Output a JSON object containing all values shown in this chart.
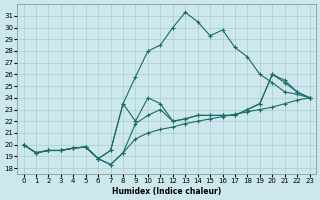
{
  "xlabel": "Humidex (Indice chaleur)",
  "bg_color": "#cce8ec",
  "grid_color": "#aacccc",
  "line_color": "#1a6b6b",
  "xlim": [
    -0.5,
    23.5
  ],
  "ylim": [
    17.5,
    32.0
  ],
  "xticks": [
    0,
    1,
    2,
    3,
    4,
    5,
    6,
    7,
    8,
    9,
    10,
    11,
    12,
    13,
    14,
    15,
    16,
    17,
    18,
    19,
    20,
    21,
    22,
    23
  ],
  "yticks": [
    18,
    19,
    20,
    21,
    22,
    23,
    24,
    25,
    26,
    27,
    28,
    29,
    30,
    31
  ],
  "lines": [
    {
      "x": [
        0,
        1,
        2,
        3,
        4,
        5,
        6,
        7,
        8,
        9,
        10,
        11,
        12,
        13,
        14,
        15,
        16,
        17,
        18,
        19,
        20,
        21,
        22,
        23
      ],
      "y": [
        20.0,
        19.3,
        19.5,
        19.5,
        19.7,
        19.8,
        18.8,
        18.3,
        19.3,
        20.5,
        21.0,
        21.3,
        21.5,
        21.8,
        22.0,
        22.2,
        22.4,
        22.6,
        22.8,
        23.0,
        23.2,
        23.5,
        23.8,
        24.0
      ]
    },
    {
      "x": [
        0,
        1,
        2,
        3,
        4,
        5,
        6,
        7,
        8,
        9,
        10,
        11,
        12,
        13,
        14,
        15,
        16,
        17,
        18,
        19,
        20,
        21,
        22,
        23
      ],
      "y": [
        20.0,
        19.3,
        19.5,
        19.5,
        19.7,
        19.8,
        18.8,
        18.3,
        19.3,
        21.8,
        22.5,
        23.0,
        22.0,
        22.2,
        22.5,
        22.5,
        22.5,
        22.5,
        23.0,
        23.5,
        26.0,
        25.5,
        24.5,
        24.0
      ]
    },
    {
      "x": [
        0,
        1,
        2,
        3,
        4,
        5,
        6,
        7,
        8,
        9,
        10,
        11,
        12,
        13,
        14,
        15,
        16,
        17,
        18,
        19,
        20,
        21,
        22,
        23
      ],
      "y": [
        20.0,
        19.3,
        19.5,
        19.5,
        19.7,
        19.8,
        18.8,
        19.5,
        23.5,
        22.0,
        24.0,
        23.5,
        22.0,
        22.2,
        22.5,
        22.5,
        22.5,
        22.5,
        23.0,
        23.5,
        26.0,
        25.3,
        24.5,
        24.0
      ]
    },
    {
      "x": [
        0,
        1,
        2,
        3,
        4,
        5,
        6,
        7,
        8,
        9,
        10,
        11,
        12,
        13,
        14,
        15,
        16,
        17,
        18,
        19,
        20,
        21,
        22,
        23
      ],
      "y": [
        20.0,
        19.3,
        19.5,
        19.5,
        19.7,
        19.8,
        18.8,
        19.5,
        23.5,
        25.8,
        28.0,
        28.5,
        30.0,
        31.3,
        30.5,
        29.3,
        29.8,
        28.3,
        27.5,
        26.0,
        25.3,
        24.5,
        24.3,
        24.0
      ]
    }
  ]
}
